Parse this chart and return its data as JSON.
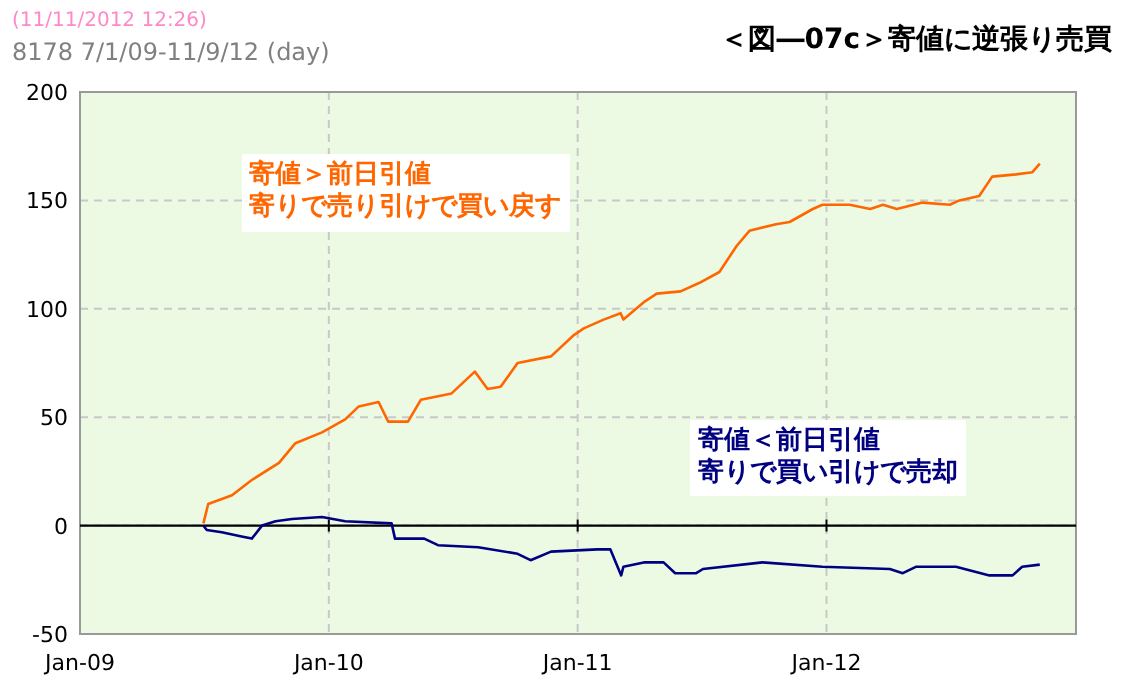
{
  "chart_data": {
    "type": "line",
    "title": "＜図―07c＞寄値に逆張り売買",
    "subtitle": "8178 7/1/09-11/9/12 (day)",
    "annotations": [
      "(11/11/2012 12:26)"
    ],
    "xlim": [
      "2009-01-01",
      "2013-01-01"
    ],
    "xticks": [
      {
        "value": "2009-01-01",
        "label": "Jan-09"
      },
      {
        "value": "2010-01-01",
        "label": "Jan-10"
      },
      {
        "value": "2011-01-01",
        "label": "Jan-11"
      },
      {
        "value": "2012-01-01",
        "label": "Jan-12"
      }
    ],
    "ylim": [
      -50,
      200
    ],
    "yticks": [
      -50,
      0,
      50,
      100,
      150,
      200
    ],
    "grid": true,
    "series": [
      {
        "name": "寄値＞前日引値寄りで売り引けで買い戻す",
        "color": "#ff6600",
        "x": [
          "2009-07-01",
          "2009-07-08",
          "2009-08-12",
          "2009-09-10",
          "2009-10-20",
          "2009-11-13",
          "2009-12-22",
          "2010-01-25",
          "2010-02-14",
          "2010-03-15",
          "2010-03-29",
          "2010-04-27",
          "2010-05-16",
          "2010-06-30",
          "2010-08-03",
          "2010-08-22",
          "2010-09-10",
          "2010-10-05",
          "2010-11-23",
          "2010-12-27",
          "2011-01-10",
          "2011-02-08",
          "2011-03-05",
          "2011-03-09",
          "2011-04-08",
          "2011-04-27",
          "2011-06-01",
          "2011-06-29",
          "2011-07-28",
          "2011-08-22",
          "2011-09-10",
          "2011-10-19",
          "2011-11-08",
          "2011-12-12",
          "2011-12-26",
          "2012-02-04",
          "2012-03-05",
          "2012-03-24",
          "2012-04-13",
          "2012-05-21",
          "2012-06-30",
          "2012-07-14",
          "2012-08-12",
          "2012-08-31",
          "2012-10-05",
          "2012-10-29",
          "2012-11-09"
        ],
        "values": [
          1,
          10,
          14,
          21,
          29,
          38,
          43,
          49,
          55,
          57,
          48,
          48,
          58,
          61,
          71,
          63,
          64,
          75,
          78,
          88,
          91,
          95,
          98,
          95,
          103,
          107,
          108,
          112,
          117,
          129,
          136,
          139,
          140,
          146,
          148,
          148,
          146,
          148,
          146,
          149,
          148,
          150,
          152,
          161,
          162,
          163,
          167
        ]
      },
      {
        "name": "寄値＜前日引値寄りで買い引けで売却",
        "color": "#000080",
        "x": [
          "2009-07-01",
          "2009-07-06",
          "2009-07-28",
          "2009-08-26",
          "2009-09-10",
          "2009-09-25",
          "2009-10-15",
          "2009-11-08",
          "2009-12-22",
          "2010-01-25",
          "2010-04-03",
          "2010-04-08",
          "2010-05-21",
          "2010-06-10",
          "2010-08-08",
          "2010-10-05",
          "2010-10-24",
          "2010-11-23",
          "2011-01-30",
          "2011-02-18",
          "2011-03-06",
          "2011-03-09",
          "2011-04-08",
          "2011-05-07",
          "2011-05-24",
          "2011-06-24",
          "2011-07-04",
          "2011-09-29",
          "2011-12-26",
          "2012-04-03",
          "2012-04-22",
          "2012-05-11",
          "2012-07-09",
          "2012-08-27",
          "2012-09-30",
          "2012-10-14",
          "2012-11-09"
        ],
        "values": [
          0,
          -2,
          -3,
          -5,
          -6,
          0,
          2,
          3,
          4,
          2,
          1,
          -6,
          -6,
          -9,
          -10,
          -13,
          -16,
          -12,
          -11,
          -11,
          -23,
          -19,
          -17,
          -17,
          -22,
          -22,
          -20,
          -17,
          -19,
          -20,
          -22,
          -19,
          -19,
          -23,
          -23,
          -19,
          -18
        ]
      }
    ]
  }
}
